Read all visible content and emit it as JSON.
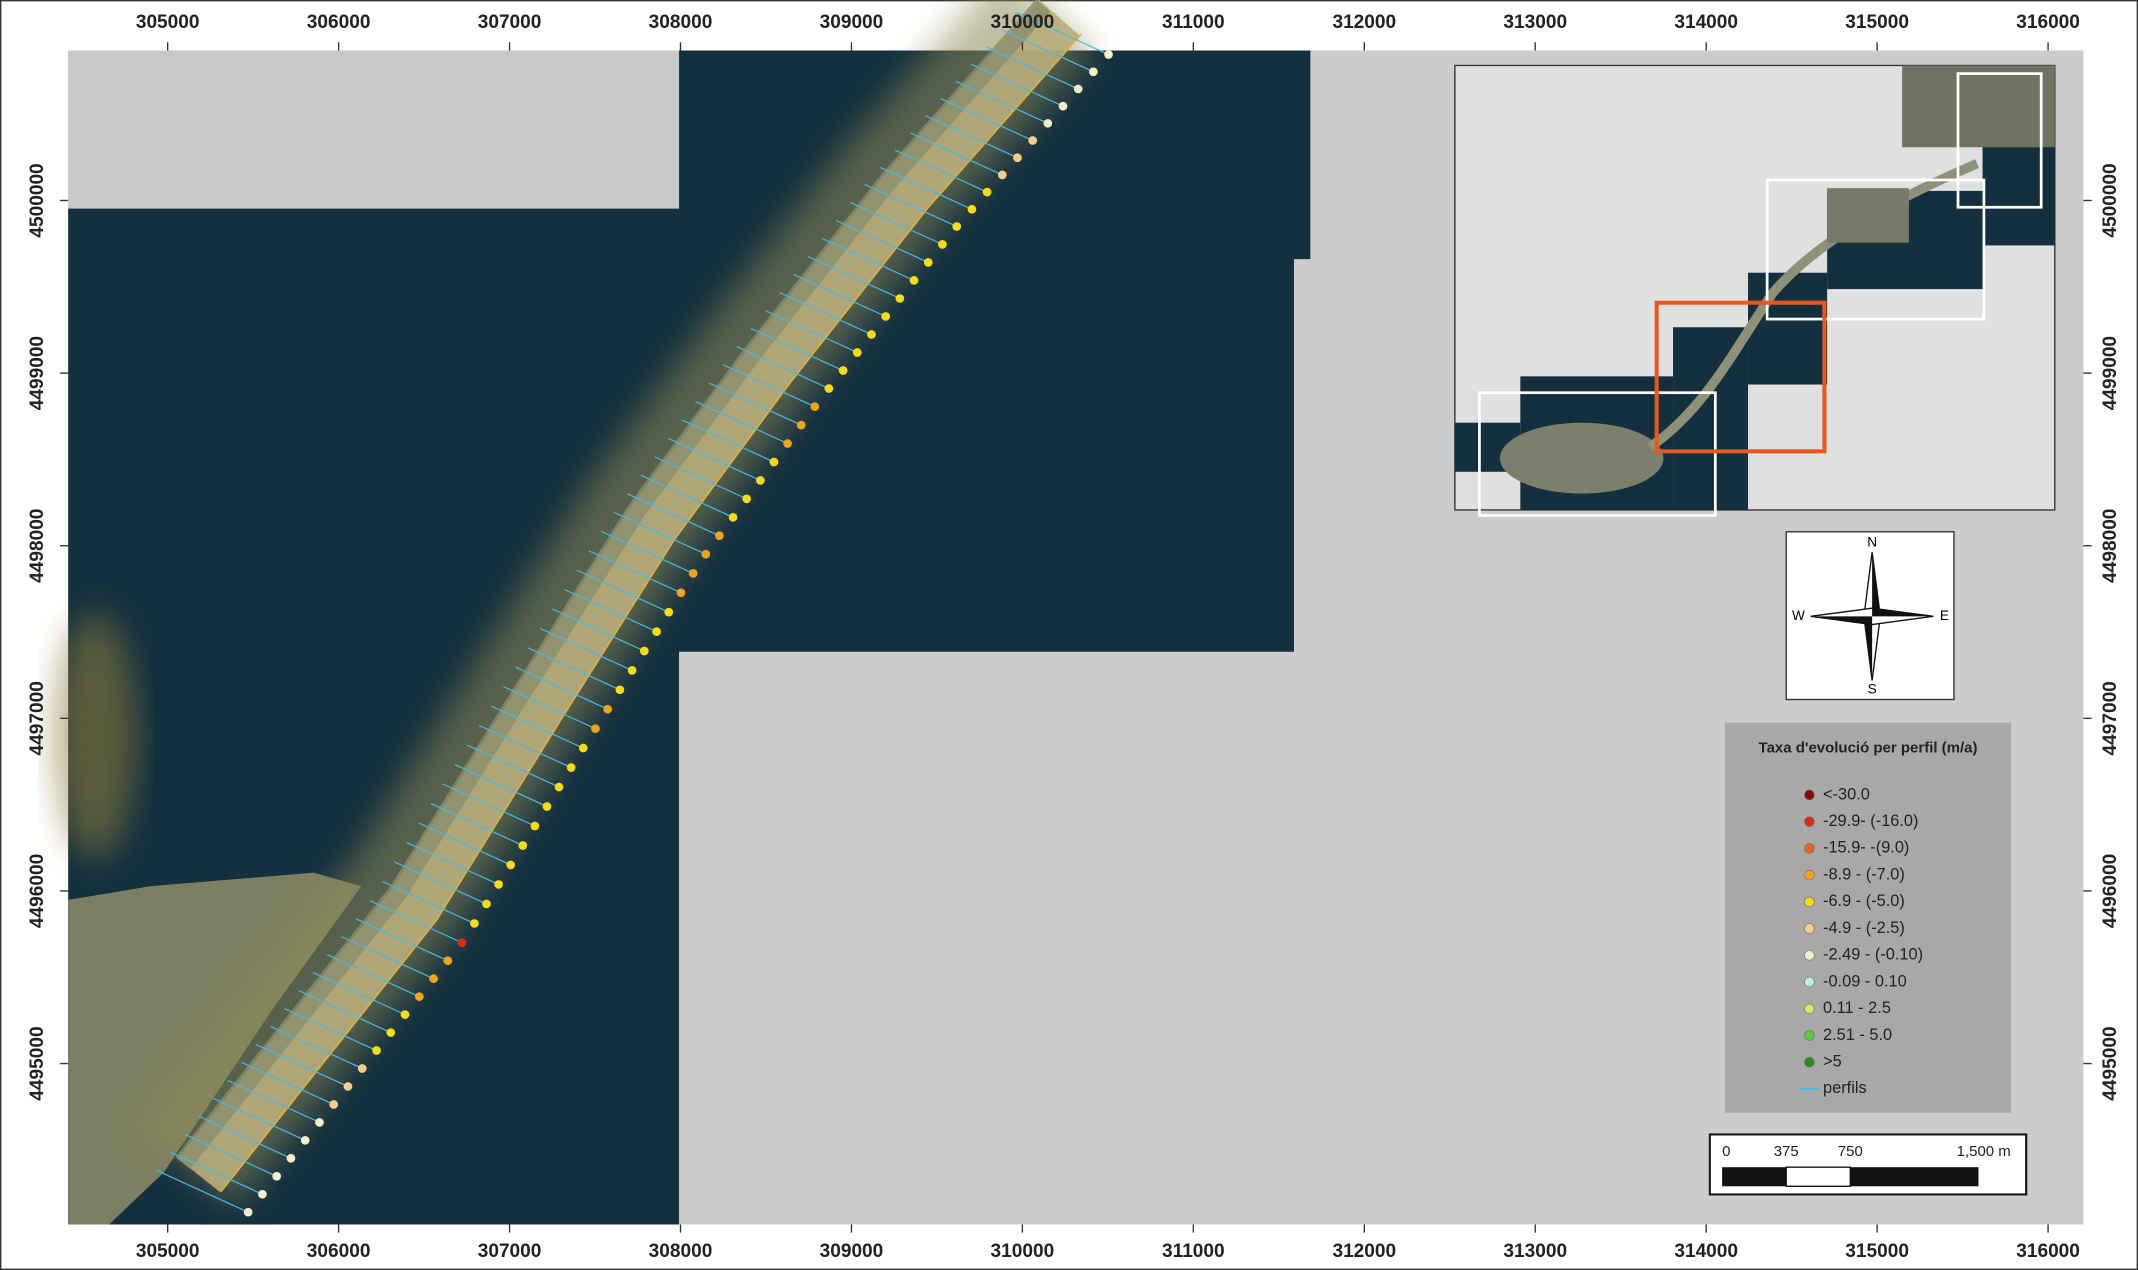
{
  "map": {
    "xlim": [
      304418,
      316207
    ],
    "ylim": [
      4494068,
      4500869
    ],
    "xticks": [
      305000,
      306000,
      307000,
      308000,
      309000,
      310000,
      311000,
      312000,
      313000,
      314000,
      315000,
      316000
    ],
    "yticks": [
      4495000,
      4496000,
      4497000,
      4498000,
      4499000,
      4500000
    ],
    "legend": {
      "title": "Taxa d'evolució per perfil (m/a)",
      "items": [
        {
          "label": "<-30.0",
          "color": "#8b0a0a"
        },
        {
          "label": "-29.9- (-16.0)",
          "color": "#e02814"
        },
        {
          "label": "-15.9- -(9.0)",
          "color": "#e8641e"
        },
        {
          "label": "-8.9 - (-7.0)",
          "color": "#f0a41e"
        },
        {
          "label": "-6.9 - (-5.0)",
          "color": "#f8dc14"
        },
        {
          "label": "-4.9 - (-2.5)",
          "color": "#f5cf8a"
        },
        {
          "label": "-2.49 - (-0.10)",
          "color": "#f4eecb"
        },
        {
          "label": "-0.09 - 0.10",
          "color": "#c4ece4"
        },
        {
          "label": "0.11 - 2.5",
          "color": "#c8ec64"
        },
        {
          "label": "2.51 - 5.0",
          "color": "#5ccc3c"
        },
        {
          "label": ">5",
          "color": "#2e8c22"
        }
      ],
      "line_item": {
        "label": "perfils",
        "color": "#4ab8e0"
      }
    },
    "profile_classes": [
      6,
      6,
      6,
      6,
      6,
      6,
      5,
      5,
      5,
      4,
      4,
      4,
      3,
      3,
      3,
      1,
      4,
      4,
      4,
      4,
      4,
      4,
      4,
      4,
      4,
      4,
      3,
      3,
      4,
      4,
      4,
      4,
      4,
      3,
      3,
      3,
      3,
      4,
      4,
      4,
      4,
      3,
      3,
      3,
      4,
      4,
      4,
      4,
      4,
      4,
      4,
      4,
      4,
      4,
      4,
      4,
      5,
      5,
      5,
      6,
      6,
      6,
      6,
      6
    ],
    "scale_bar": [
      "0",
      "375",
      "750",
      "1,500 m"
    ],
    "compass": {
      "n": "N",
      "s": "S",
      "e": "E",
      "w": "W"
    }
  }
}
